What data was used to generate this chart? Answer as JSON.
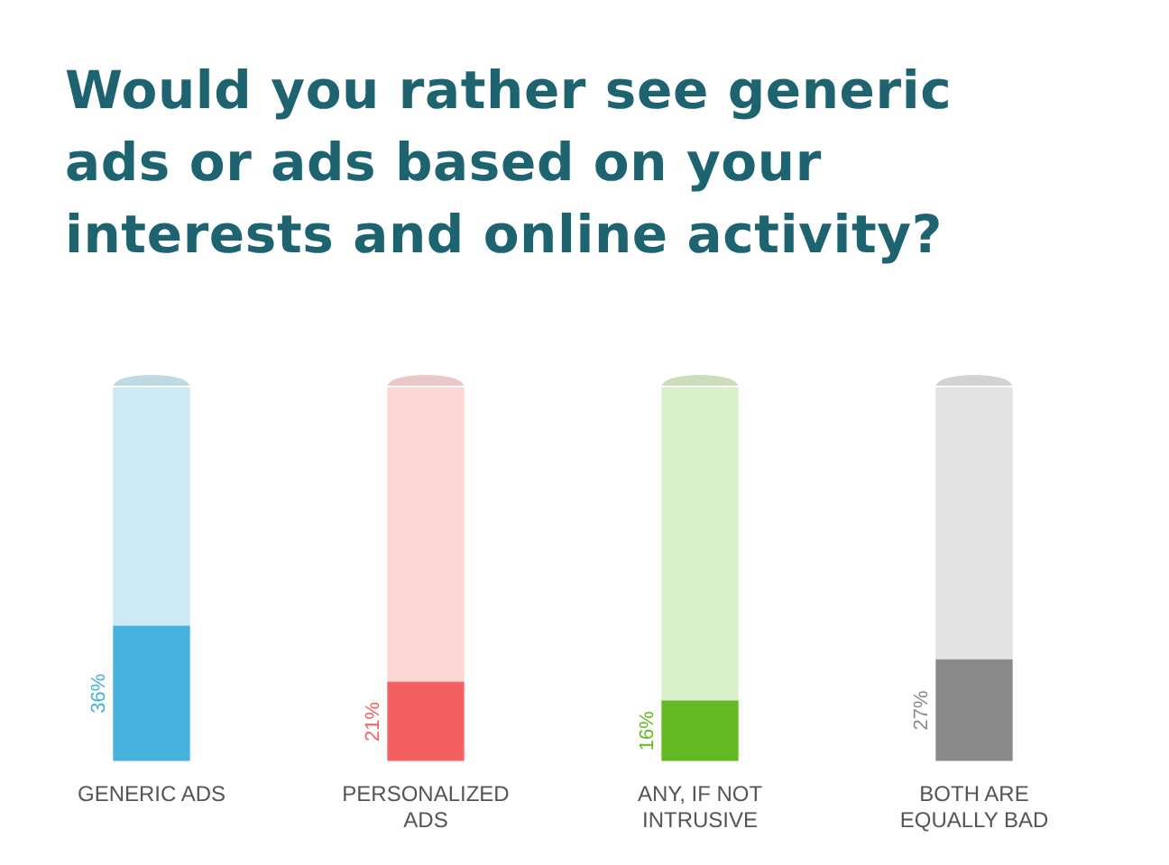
{
  "chart_data": {
    "type": "bar",
    "title": "Would you rather see generic ads or ads based on your interests and online activity?",
    "categories": [
      "GENERIC ADS",
      "PERSONALIZED ADS",
      "ANY, IF NOT INTRUSIVE",
      "BOTH ARE EQUALLY BAD"
    ],
    "series": [
      {
        "values": [
          36,
          21,
          16,
          27
        ],
        "colors": [
          "#45b1dc",
          "#f45f5f",
          "#62bb22",
          "#8a8a8a"
        ],
        "value_labels": [
          "36%",
          "21%",
          "16%",
          "27%"
        ]
      },
      {
        "values": [
          64,
          79,
          84,
          73
        ],
        "colors": [
          "#cdeaf5",
          "#fdd6d6",
          "#d9efc9",
          "#e3e3e3"
        ]
      }
    ],
    "stacked": true,
    "grid": false,
    "legend": false
  }
}
